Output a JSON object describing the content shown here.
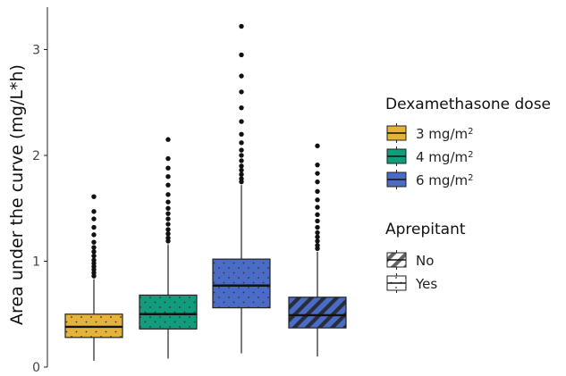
{
  "chart_data": {
    "type": "boxplot",
    "title": "",
    "xlabel": "",
    "ylabel": "Area under the curve (mg/L*h)",
    "ylim": [
      0,
      3.35
    ],
    "yticks": [
      0,
      1,
      2,
      3
    ],
    "grid": false,
    "legend_position": "right",
    "colors": {
      "3 mg/m2": "#E6B33A",
      "4 mg/m2": "#129C7B",
      "6 mg/m2": "#4A6CC6"
    },
    "legends": [
      {
        "title": "Dexamethasone dose",
        "entries": [
          {
            "base": "3 mg/m",
            "sup": "2",
            "color": "#E6B33A"
          },
          {
            "base": "4 mg/m",
            "sup": "2",
            "color": "#129C7B"
          },
          {
            "base": "6 mg/m",
            "sup": "2",
            "color": "#4A6CC6"
          }
        ]
      },
      {
        "title": "Aprepitant",
        "entries": [
          {
            "label": "No",
            "pattern": "stripe"
          },
          {
            "label": "Yes",
            "pattern": "dots"
          }
        ]
      }
    ],
    "boxes": [
      {
        "dose": "3 mg/m2",
        "aprepitant": "Yes",
        "whisker_low": 0.06,
        "q1": 0.28,
        "median": 0.38,
        "q3": 0.5,
        "whisker_high": 0.83,
        "outliers": [
          0.86,
          0.89,
          0.92,
          0.95,
          0.98,
          1.01,
          1.05,
          1.09,
          1.13,
          1.18,
          1.25,
          1.32,
          1.4,
          1.47,
          1.61
        ]
      },
      {
        "dose": "4 mg/m2",
        "aprepitant": "Yes",
        "whisker_low": 0.08,
        "q1": 0.36,
        "median": 0.5,
        "q3": 0.68,
        "whisker_high": 1.16,
        "outliers": [
          1.19,
          1.22,
          1.26,
          1.3,
          1.35,
          1.4,
          1.45,
          1.5,
          1.56,
          1.63,
          1.72,
          1.8,
          1.88,
          1.97,
          2.15
        ]
      },
      {
        "dose": "6 mg/m2",
        "aprepitant": "Yes",
        "whisker_low": 0.13,
        "q1": 0.56,
        "median": 0.77,
        "q3": 1.02,
        "whisker_high": 1.72,
        "outliers": [
          1.75,
          1.78,
          1.82,
          1.86,
          1.9,
          1.95,
          2.0,
          2.05,
          2.12,
          2.2,
          2.32,
          2.45,
          2.6,
          2.75,
          2.95,
          3.22
        ]
      },
      {
        "dose": "6 mg/m2",
        "aprepitant": "No",
        "whisker_low": 0.1,
        "q1": 0.37,
        "median": 0.49,
        "q3": 0.66,
        "whisker_high": 1.09,
        "outliers": [
          1.12,
          1.15,
          1.19,
          1.23,
          1.27,
          1.32,
          1.38,
          1.44,
          1.51,
          1.58,
          1.66,
          1.75,
          1.83,
          1.91,
          2.09
        ]
      }
    ]
  }
}
